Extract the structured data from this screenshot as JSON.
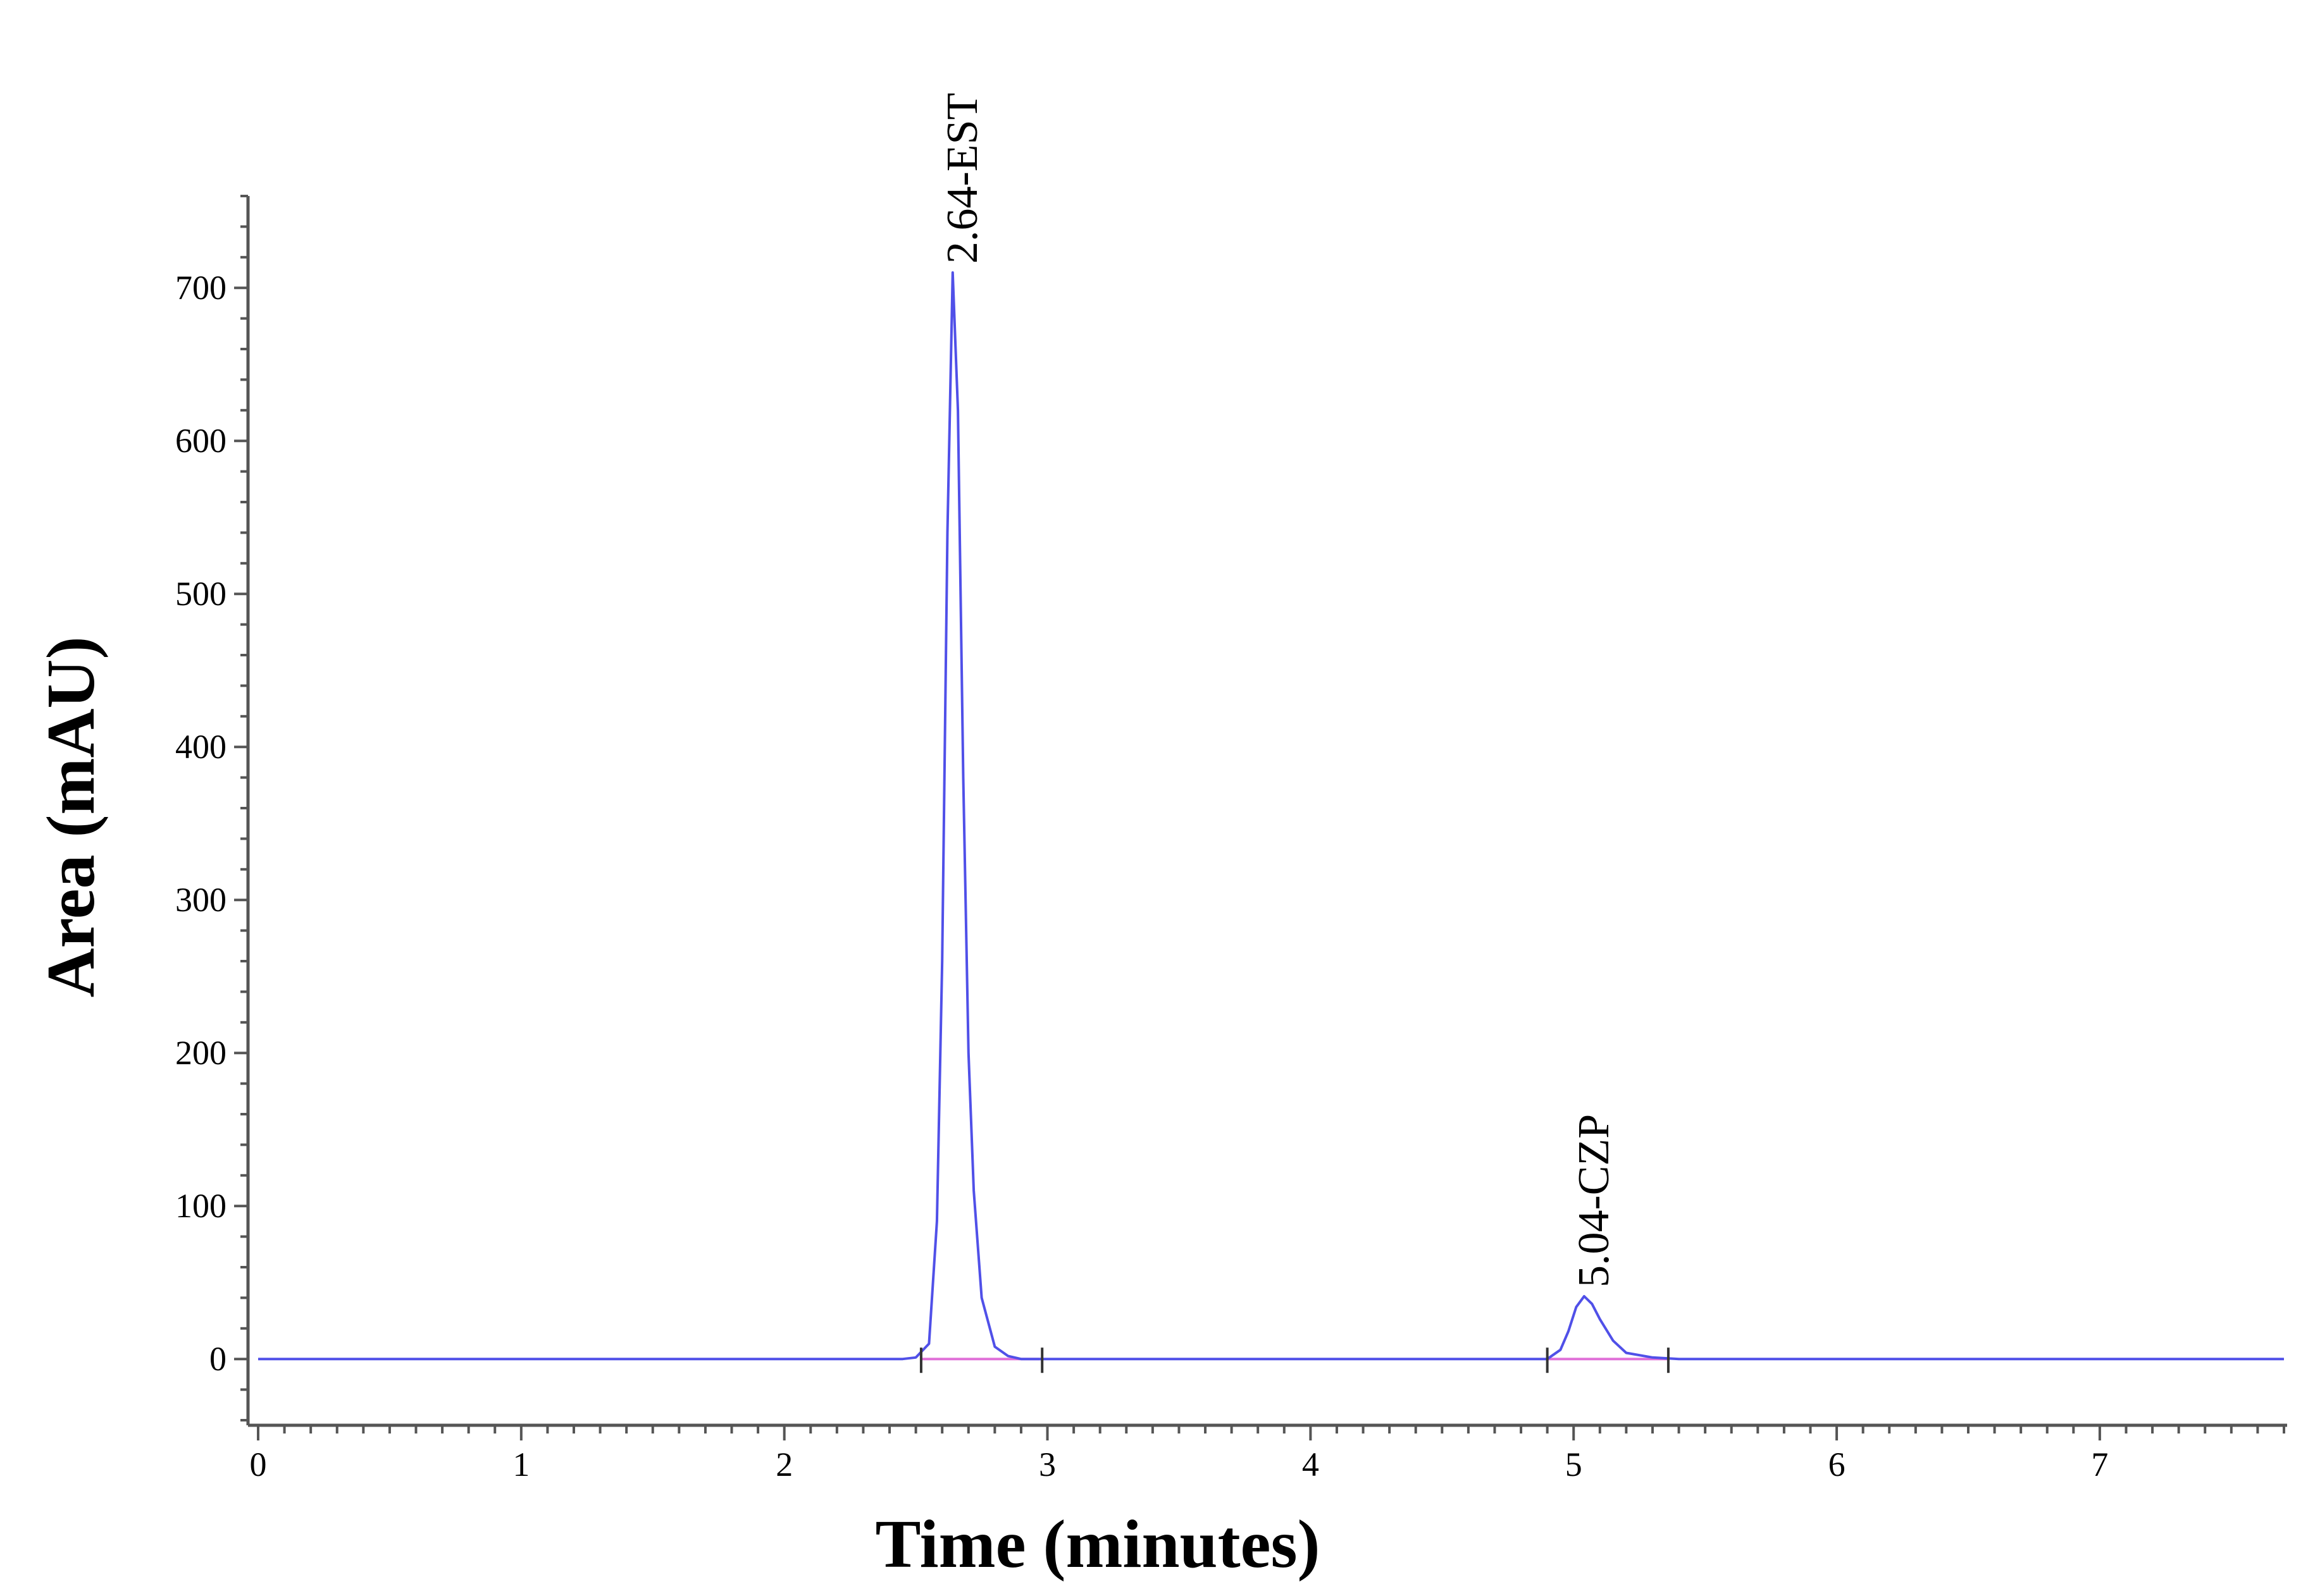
{
  "chart_data": {
    "type": "line",
    "title": "",
    "xlabel": "Time (minutes)",
    "ylabel": "Area (mAU)",
    "xlim": [
      0,
      7.7
    ],
    "ylim": [
      -40,
      760
    ],
    "x_ticks": [
      "0",
      "1",
      "2",
      "3",
      "4",
      "5",
      "6",
      "7"
    ],
    "y_ticks": [
      "0",
      "100",
      "200",
      "300",
      "400",
      "500",
      "600",
      "700"
    ],
    "grid": false,
    "legend": "none",
    "series": [
      {
        "color": "#5050e8",
        "x": [
          0,
          2.45,
          2.5,
          2.55,
          2.58,
          2.6,
          2.62,
          2.64,
          2.66,
          2.68,
          2.7,
          2.72,
          2.75,
          2.8,
          2.85,
          2.9,
          3.0,
          4.9,
          4.95,
          4.98,
          5.01,
          5.04,
          5.07,
          5.1,
          5.15,
          5.2,
          5.3,
          5.4,
          7.7
        ],
        "y": [
          0,
          0,
          1,
          10,
          90,
          260,
          540,
          710,
          620,
          380,
          200,
          110,
          40,
          8,
          2,
          0,
          0,
          0,
          6,
          18,
          34,
          41,
          36,
          26,
          12,
          4,
          1,
          0,
          0
        ]
      },
      {
        "color": "#e070d8",
        "x": [
          2.52,
          2.98
        ],
        "y": [
          0,
          0
        ]
      },
      {
        "color": "#e070d8",
        "x": [
          4.9,
          5.36
        ],
        "y": [
          0,
          0
        ]
      }
    ],
    "annotations": [
      {
        "text": "2.64-EST",
        "x": 2.64,
        "y": 710
      },
      {
        "text": "5.04-CZP",
        "x": 5.04,
        "y": 41
      }
    ]
  }
}
